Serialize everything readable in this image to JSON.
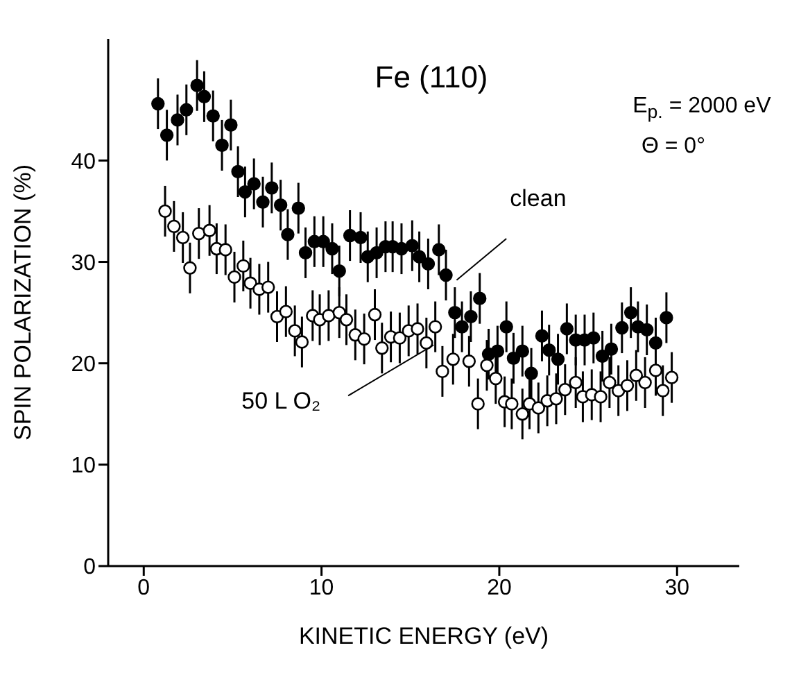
{
  "chart_data": {
    "type": "scatter",
    "xlabel": "KINETIC ENERGY (eV)",
    "ylabel": "SPIN POLARIZATION (%)",
    "annotations": [
      "Fe (110)",
      "E$_{p.}$ = 2000 eV",
      "Θ = 0°"
    ],
    "xlim": [
      -2,
      33.5
    ],
    "ylim": [
      0,
      52
    ],
    "xticks": [
      0,
      10,
      20,
      30
    ],
    "yticks": [
      0,
      10,
      20,
      30,
      40
    ],
    "grid": false,
    "legend": false,
    "marker": "circle",
    "series": [
      {
        "name": "clean",
        "color": "#000000",
        "x": [
          0.8,
          1.3,
          1.9,
          2.4,
          3.0,
          3.4,
          3.9,
          4.4,
          4.9,
          5.3,
          5.7,
          6.2,
          6.7,
          7.2,
          7.7,
          8.1,
          8.7,
          9.1,
          9.6,
          10.1,
          10.6,
          11.0,
          11.6,
          12.2,
          12.6,
          13.1,
          13.6,
          14.0,
          14.5,
          15.1,
          15.5,
          16.0,
          16.6,
          17.0,
          17.5,
          17.9,
          18.4,
          18.9,
          19.4,
          19.9,
          20.4,
          20.8,
          21.3,
          21.8,
          22.4,
          22.8,
          23.3,
          23.8,
          24.3,
          24.8,
          25.3,
          25.8,
          26.3,
          26.9,
          27.4,
          27.8,
          28.3,
          28.8,
          29.4
        ],
        "values": [
          45.6,
          42.5,
          44,
          45,
          47.4,
          46.3,
          44.4,
          41.5,
          43.5,
          38.9,
          36.9,
          37.7,
          35.9,
          37.3,
          35.6,
          32.7,
          35.3,
          30.9,
          32,
          32,
          31.3,
          29.1,
          32.6,
          32.4,
          30.5,
          30.9,
          31.5,
          31.5,
          31.3,
          31.6,
          30.5,
          29.8,
          31.2,
          28.7,
          25,
          23.6,
          24.6,
          26.4,
          20.9,
          21.2,
          23.6,
          20.5,
          21.2,
          19,
          22.7,
          21.3,
          20.4,
          23.4,
          22.3,
          22.3,
          22.5,
          20.7,
          21.4,
          23.5,
          25,
          23.6,
          23.3,
          22,
          24.5
        ],
        "errors": [
          2.5,
          2.5,
          2.5,
          2.5,
          2.5,
          2.5,
          2.5,
          2.5,
          2.5,
          2.5,
          2.5,
          2.5,
          2.5,
          2.5,
          2.5,
          2.5,
          2.5,
          2.5,
          2.5,
          2.5,
          2.5,
          2.5,
          2.5,
          2.5,
          2.5,
          2.5,
          2.5,
          2.5,
          2.5,
          2.5,
          2.5,
          2.5,
          2.5,
          2.5,
          2.5,
          2.5,
          2.5,
          2.5,
          2.5,
          2.5,
          2.5,
          2.5,
          2.5,
          2.5,
          2.5,
          2.5,
          2.5,
          2.5,
          2.5,
          2.5,
          2.5,
          2.5,
          2.5,
          2.5,
          2.5,
          2.5,
          2.5,
          2.5,
          2.5
        ]
      },
      {
        "name": "50 L O₂",
        "color": "#ffffff",
        "x": [
          1.2,
          1.7,
          2.2,
          2.6,
          3.1,
          3.7,
          4.1,
          4.6,
          5.1,
          5.6,
          6.0,
          6.5,
          7.0,
          7.5,
          8.0,
          8.5,
          8.9,
          9.5,
          9.9,
          10.4,
          11.0,
          11.4,
          11.9,
          12.4,
          13.0,
          13.4,
          13.9,
          14.4,
          14.9,
          15.4,
          15.9,
          16.4,
          16.8,
          17.4,
          18.3,
          18.8,
          19.3,
          19.8,
          20.3,
          20.7,
          21.3,
          21.7,
          22.2,
          22.7,
          23.2,
          23.7,
          24.3,
          24.7,
          25.2,
          25.7,
          26.2,
          26.7,
          27.2,
          27.7,
          28.2,
          28.8,
          29.2,
          29.7
        ],
        "values": [
          35,
          33.5,
          32.4,
          29.4,
          32.8,
          33.1,
          31.3,
          31.2,
          28.5,
          29.6,
          27.9,
          27.3,
          27.5,
          24.6,
          25.1,
          23.2,
          22.1,
          24.7,
          24.3,
          24.7,
          25,
          24.3,
          22.8,
          22.4,
          24.8,
          21.5,
          22.6,
          22.5,
          23.2,
          23.4,
          22,
          23.6,
          19.2,
          20.4,
          20.2,
          16,
          19.8,
          18.5,
          16.2,
          16,
          15,
          16,
          15.6,
          16.3,
          16.5,
          17.4,
          18.1,
          16.7,
          16.9,
          16.7,
          18.1,
          17.3,
          17.8,
          18.8,
          18.1,
          19.3,
          17.3,
          18.6
        ],
        "errors": [
          2.5,
          2.5,
          2.5,
          2.5,
          2.5,
          2.5,
          2.5,
          2.5,
          2.5,
          2.5,
          2.5,
          2.5,
          2.5,
          2.5,
          2.5,
          2.5,
          2.5,
          2.5,
          2.5,
          2.5,
          2.5,
          2.5,
          2.5,
          2.5,
          2.5,
          2.5,
          2.5,
          2.5,
          2.5,
          2.5,
          2.5,
          2.5,
          2.5,
          2.5,
          2.5,
          2.5,
          2.5,
          2.5,
          2.5,
          2.5,
          2.5,
          2.5,
          2.5,
          2.5,
          2.5,
          2.5,
          2.5,
          2.5,
          2.5,
          2.5,
          2.5,
          2.5,
          2.5,
          2.5,
          2.5,
          2.5,
          2.5,
          2.5
        ]
      }
    ]
  }
}
